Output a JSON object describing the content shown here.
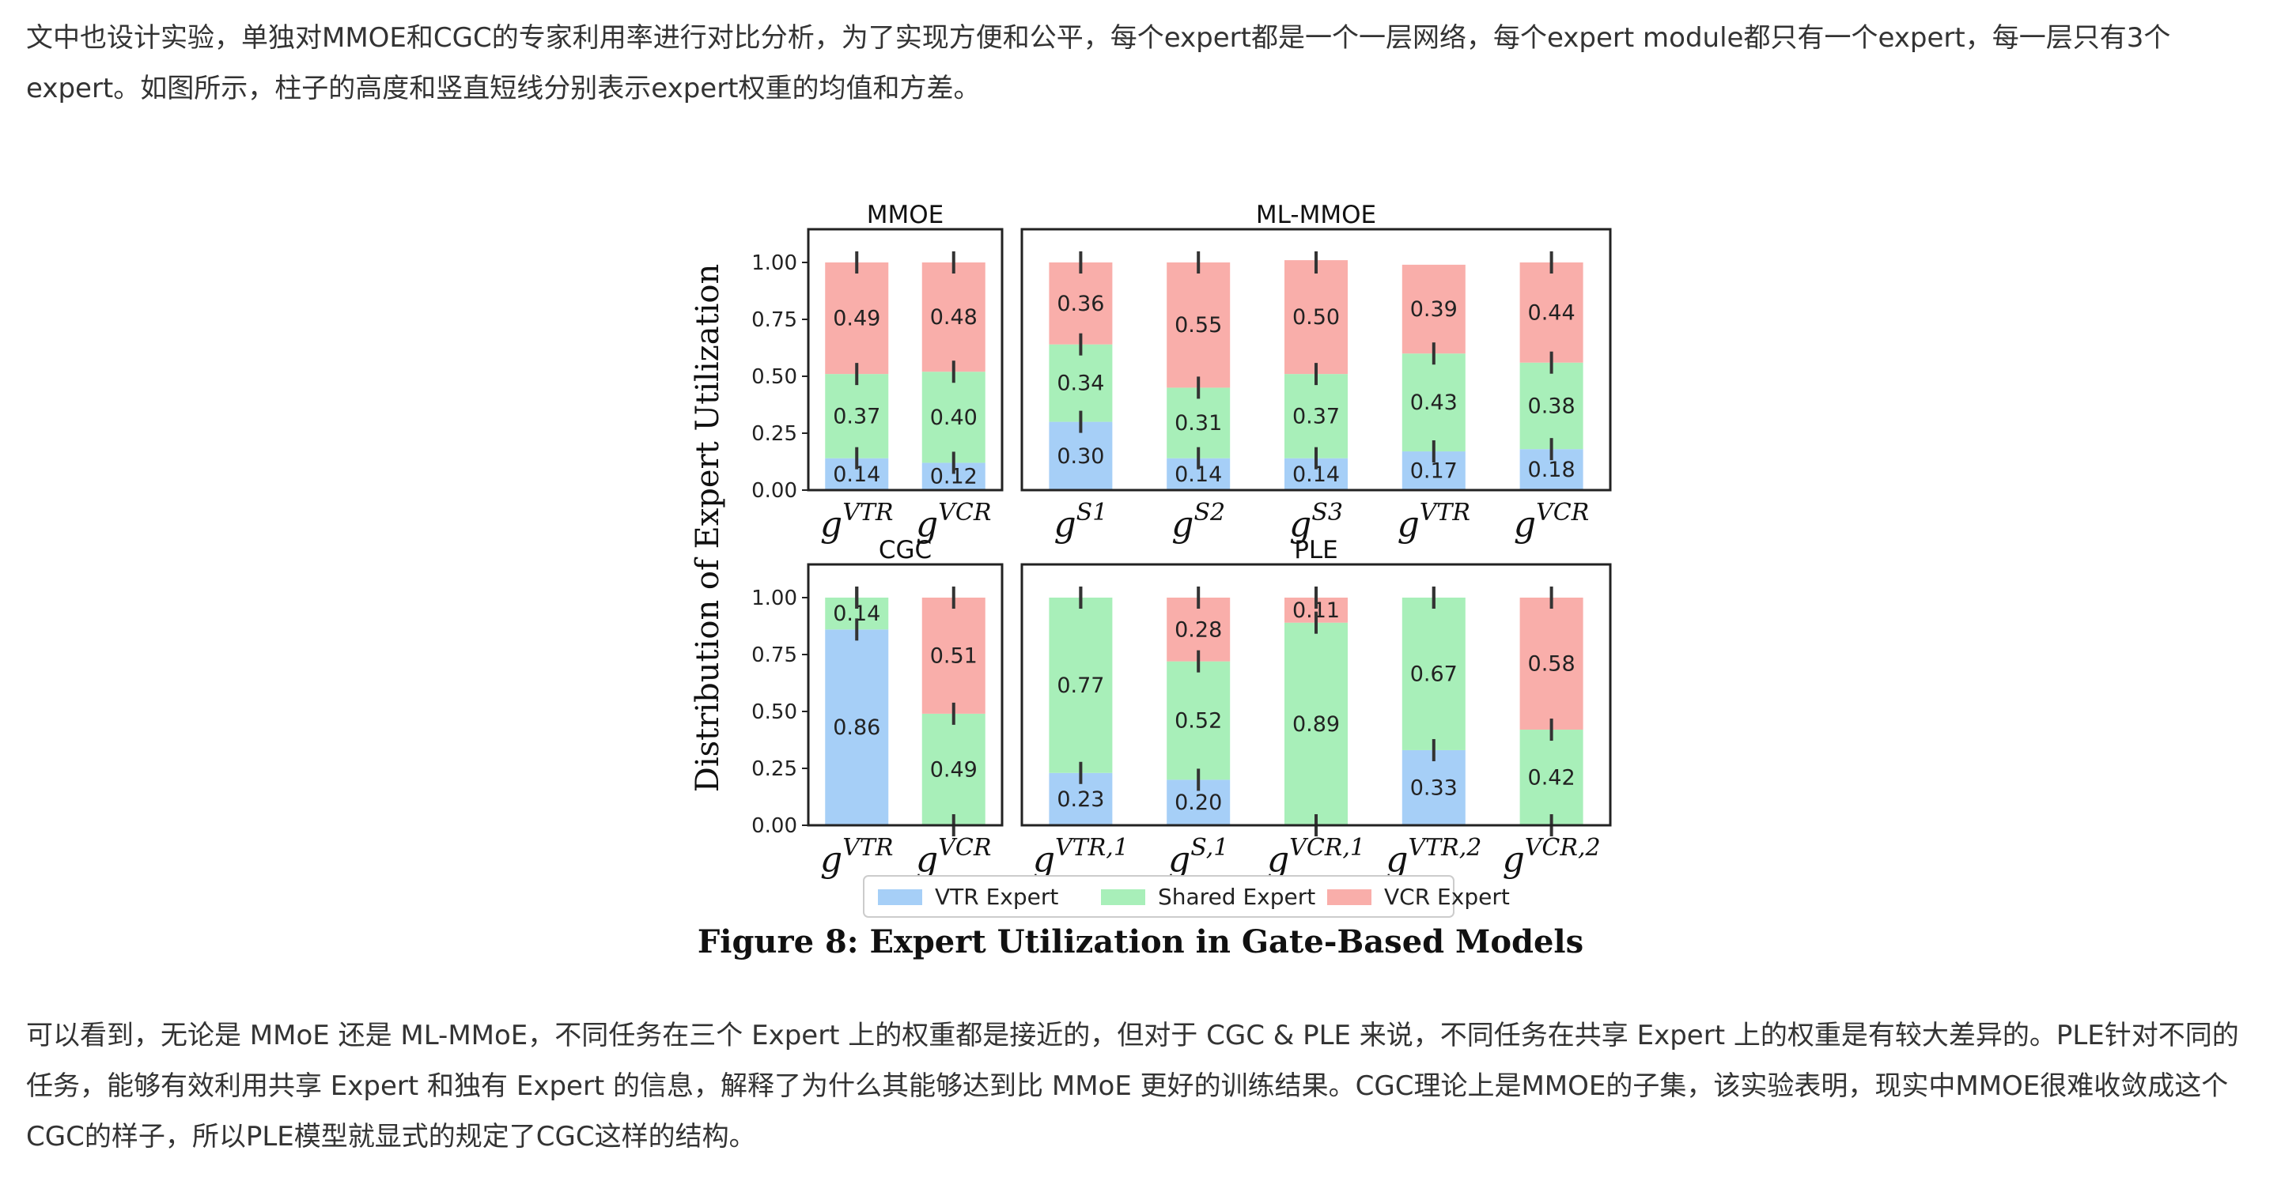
{
  "text": {
    "para1": "文中也设计实验，单独对MMOE和CGC的专家利用率进行对比分析，为了实现方便和公平，每个expert都是一个一层网络，每个expert module都只有一个expert，每一层只有3个expert。如图所示，柱子的高度和竖直短线分别表示expert权重的均值和方差。",
    "caption": "Figure 8: Expert Utilization in Gate-Based Models",
    "para2": "可以看到，无论是 MMoE 还是 ML-MMoE，不同任务在三个 Expert 上的权重都是接近的，但对于 CGC & PLE 来说，不同任务在共享 Expert 上的权重是有较大差异的。PLE针对不同的任务，能够有效利用共享 Expert 和独有 Expert 的信息，解释了为什么其能够达到比 MMoE 更好的训练结果。CGC理论上是MMOE的子集，该实验表明，现实中MMOE很难收敛成这个CGC的样子，所以PLE模型就显式的规定了CGC这样的结构。"
  },
  "chart_data": {
    "type": "bar",
    "stacked": true,
    "ylabel": "Distribution of Expert Utilization",
    "ylim": [
      0,
      1
    ],
    "yticks": [
      "0.00",
      "0.25",
      "0.50",
      "0.75",
      "1.00"
    ],
    "colors": {
      "VTR Expert": "#a6cff7",
      "Shared Expert": "#a8efb9",
      "VCR Expert": "#f9aeaa"
    },
    "legend": {
      "placement": "bottom",
      "entries": [
        "VTR Expert",
        "Shared Expert",
        "VCR Expert"
      ]
    },
    "panels": [
      {
        "title": "MMOE",
        "categories": [
          {
            "base": "g",
            "sup": "VTR"
          },
          {
            "base": "g",
            "sup": "VCR"
          }
        ],
        "series": [
          {
            "name": "VTR Expert",
            "values": [
              0.14,
              0.12
            ],
            "labels": [
              "0.14",
              "0.12"
            ]
          },
          {
            "name": "Shared Expert",
            "values": [
              0.37,
              0.4
            ],
            "labels": [
              "0.37",
              "0.40"
            ]
          },
          {
            "name": "VCR Expert",
            "values": [
              0.49,
              0.48
            ],
            "labels": [
              "0.49",
              "0.48"
            ]
          }
        ]
      },
      {
        "title": "ML-MMOE",
        "categories": [
          {
            "base": "g",
            "sup": "S1"
          },
          {
            "base": "g",
            "sup": "S2"
          },
          {
            "base": "g",
            "sup": "S3"
          },
          {
            "base": "g",
            "sup": "VTR"
          },
          {
            "base": "g",
            "sup": "VCR"
          }
        ],
        "series": [
          {
            "name": "VTR Expert",
            "values": [
              0.3,
              0.14,
              0.14,
              0.17,
              0.18
            ],
            "labels": [
              "0.30",
              "0.14",
              "0.14",
              "0.17",
              "0.18"
            ]
          },
          {
            "name": "Shared Expert",
            "values": [
              0.34,
              0.31,
              0.37,
              0.43,
              0.38
            ],
            "labels": [
              "0.34",
              "0.31",
              "0.37",
              "0.43",
              "0.38"
            ]
          },
          {
            "name": "VCR Expert",
            "values": [
              0.36,
              0.55,
              0.5,
              0.39,
              0.44
            ],
            "labels": [
              "0.36",
              "0.55",
              "0.50",
              "0.39",
              "0.44"
            ]
          }
        ]
      },
      {
        "title": "CGC",
        "categories": [
          {
            "base": "g",
            "sup": "VTR"
          },
          {
            "base": "g",
            "sup": "VCR"
          }
        ],
        "series": [
          {
            "name": "VTR Expert",
            "values": [
              0.86,
              0.0
            ],
            "labels": [
              "0.86",
              ""
            ]
          },
          {
            "name": "Shared Expert",
            "values": [
              0.14,
              0.49
            ],
            "labels": [
              "0.14",
              "0.49"
            ]
          },
          {
            "name": "VCR Expert",
            "values": [
              0.0,
              0.51
            ],
            "labels": [
              "",
              "0.51"
            ]
          }
        ]
      },
      {
        "title": "PLE",
        "categories": [
          {
            "base": "g",
            "sup": "VTR,1"
          },
          {
            "base": "g",
            "sup": "S,1"
          },
          {
            "base": "g",
            "sup": "VCR,1"
          },
          {
            "base": "g",
            "sup": "VTR,2"
          },
          {
            "base": "g",
            "sup": "VCR,2"
          }
        ],
        "series": [
          {
            "name": "VTR Expert",
            "values": [
              0.23,
              0.2,
              0.0,
              0.33,
              0.0
            ],
            "labels": [
              "0.23",
              "0.20",
              "",
              "0.33",
              ""
            ]
          },
          {
            "name": "Shared Expert",
            "values": [
              0.77,
              0.52,
              0.89,
              0.67,
              0.42
            ],
            "labels": [
              "0.77",
              "0.52",
              "0.89",
              "0.67",
              "0.42"
            ]
          },
          {
            "name": "VCR Expert",
            "values": [
              0.0,
              0.28,
              0.11,
              0.0,
              0.58
            ],
            "labels": [
              "",
              "0.28",
              "0.11",
              "",
              "0.58"
            ]
          }
        ]
      }
    ]
  }
}
